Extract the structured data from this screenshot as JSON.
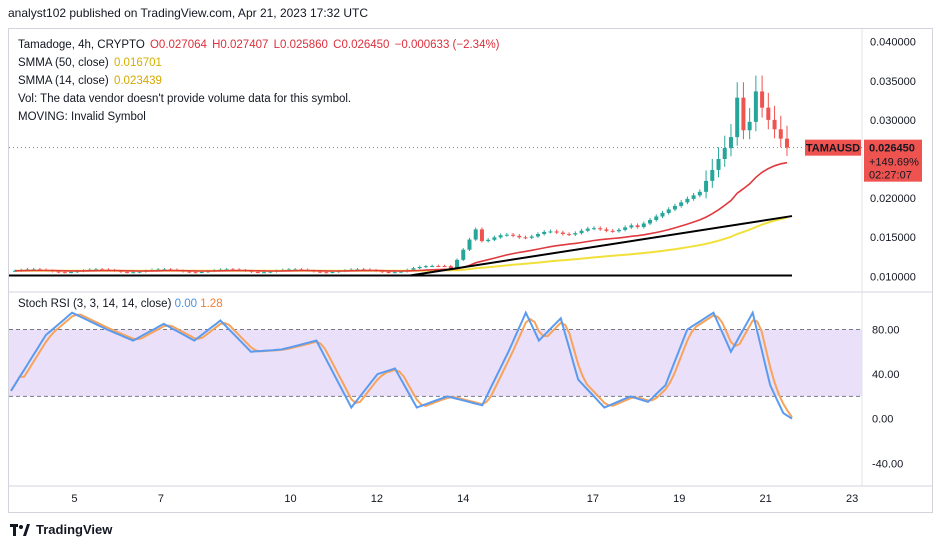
{
  "header": {
    "published": "analyst102 published on TradingView.com, Apr 21, 2023 17:32 UTC"
  },
  "legend": {
    "symbol_line": "Tamadoge, 4h, CRYPTO",
    "open": "O0.027064",
    "high": "H0.027407",
    "low": "L0.025860",
    "close": "C0.026450",
    "change": "−0.000633 (−2.34%)",
    "sma50_label": "SMMA (50, close)",
    "sma50_value": "0.016701",
    "sma14_label": "SMMA (14, close)",
    "sma14_value": "0.023439",
    "vol_note": "Vol: The data vendor doesn't provide volume data for this symbol.",
    "moving_note": "MOVING: Invalid Symbol"
  },
  "rsi_legend": {
    "label": "Stoch RSI (3, 3, 14, 14, close)",
    "k": "0.00",
    "d": "1.28"
  },
  "price_tag": {
    "symbol": "TAMAUSD",
    "price": "0.026450",
    "change": "+149.69%",
    "countdown": "02:27:07"
  },
  "footer": {
    "brand": "TradingView"
  },
  "colors": {
    "up": "#26a69a",
    "down": "#ef5350",
    "sma14": "#e0393e",
    "sma50": "#f2e03a",
    "rsi_k": "#5b9bef",
    "rsi_d": "#f7a35c",
    "rsi_band": "#e6d8f8"
  },
  "chart_data": [
    {
      "type": "candlestick",
      "yticks": [
        "0.040000",
        "0.035000",
        "0.030000",
        "0.025000",
        "0.020000",
        "0.015000",
        "0.010000"
      ],
      "ylim": [
        0.0085,
        0.0415
      ],
      "xticks": [
        "5",
        "7",
        "10",
        "12",
        "14",
        "17",
        "19",
        "21",
        "23"
      ],
      "series": [
        {
          "name": "SMMA (50, close)",
          "values_start": 0.0115,
          "values_end": 0.0167
        },
        {
          "name": "SMMA (14, close)",
          "values_start": 0.0108,
          "values_end": 0.0234
        }
      ],
      "last_close": 0.02645
    },
    {
      "type": "line",
      "yticks": [
        "80.00",
        "40.00",
        "0.00",
        "-40.00"
      ],
      "ylim": [
        -55,
        110
      ],
      "band": [
        20,
        80
      ],
      "series": [
        {
          "name": "%K",
          "last": 0.0
        },
        {
          "name": "%D",
          "last": 1.28
        }
      ]
    }
  ]
}
